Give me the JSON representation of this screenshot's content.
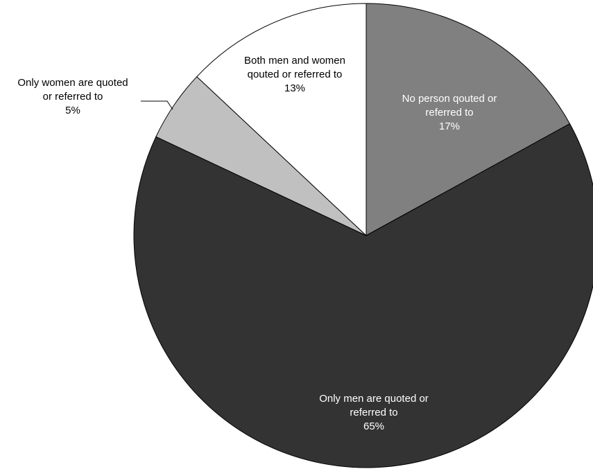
{
  "chart_data": {
    "type": "pie",
    "title": "",
    "slices": [
      {
        "name": "No person qouted or referred to",
        "label_line1": "No person qouted or",
        "label_line2": "referred to",
        "value": 17,
        "value_text": "17%",
        "color": "#808080",
        "text_color": "#ffffff"
      },
      {
        "name": "Only men are quoted or referred to",
        "label_line1": "Only men are quoted or",
        "label_line2": "referred to",
        "value": 65,
        "value_text": "65%",
        "color": "#333333",
        "text_color": "#ffffff"
      },
      {
        "name": "Only women are quoted or referred to",
        "label_line1": "Only women are quoted",
        "label_line2": "or referred to",
        "value": 5,
        "value_text": "5%",
        "color": "#c0c0c0",
        "text_color": "#000000"
      },
      {
        "name": "Both men and women qouted or referred to",
        "label_line1": "Both men and women",
        "label_line2": "qouted or referred to",
        "value": 13,
        "value_text": "13%",
        "color": "#ffffff",
        "text_color": "#000000"
      }
    ]
  }
}
